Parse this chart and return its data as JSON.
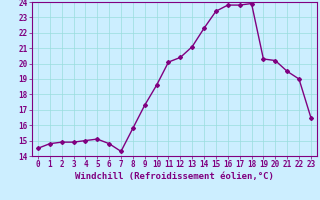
{
  "x": [
    0,
    1,
    2,
    3,
    4,
    5,
    6,
    7,
    8,
    9,
    10,
    11,
    12,
    13,
    14,
    15,
    16,
    17,
    18,
    19,
    20,
    21,
    22,
    23
  ],
  "y": [
    14.5,
    14.8,
    14.9,
    14.9,
    15.0,
    15.1,
    14.8,
    14.3,
    15.8,
    17.3,
    18.6,
    20.1,
    20.4,
    21.1,
    22.3,
    23.4,
    23.8,
    23.8,
    23.9,
    20.3,
    20.2,
    19.5,
    19.0,
    16.5
  ],
  "xlim": [
    -0.5,
    23.5
  ],
  "ylim": [
    14,
    24
  ],
  "yticks": [
    14,
    15,
    16,
    17,
    18,
    19,
    20,
    21,
    22,
    23,
    24
  ],
  "xticks": [
    0,
    1,
    2,
    3,
    4,
    5,
    6,
    7,
    8,
    9,
    10,
    11,
    12,
    13,
    14,
    15,
    16,
    17,
    18,
    19,
    20,
    21,
    22,
    23
  ],
  "xlabel": "Windchill (Refroidissement éolien,°C)",
  "line_color": "#800080",
  "marker": "D",
  "marker_size": 2.0,
  "bg_color": "#cceeff",
  "grid_color": "#99dddd",
  "axis_color": "#800080",
  "tick_color": "#800080",
  "label_color": "#800080",
  "xlabel_fontsize": 6.5,
  "tick_fontsize": 5.5,
  "line_width": 1.0
}
